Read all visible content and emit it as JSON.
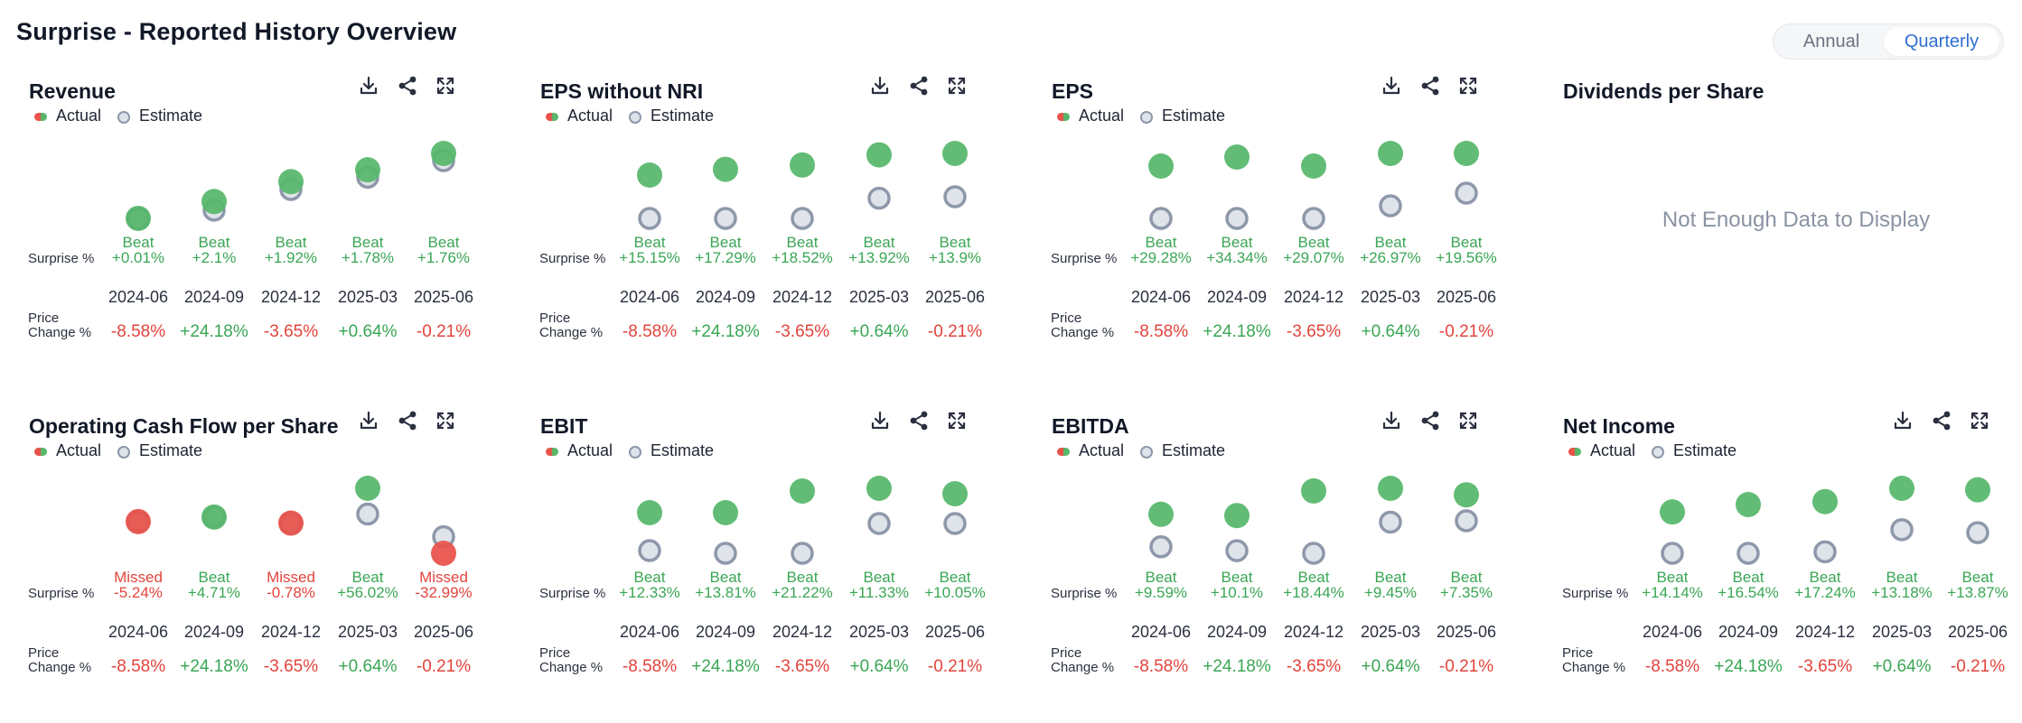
{
  "page": {
    "title": "Surprise - Reported History Overview",
    "toggle": {
      "annual": "Annual",
      "quarterly": "Quarterly",
      "selected": "Quarterly"
    }
  },
  "legend": {
    "actual": "Actual",
    "estimate": "Estimate"
  },
  "row_labels": {
    "surprise": "Surprise %",
    "price_line1": "Price",
    "price_line2": "Change %"
  },
  "icons": {
    "download": "download-icon",
    "share": "share-icon",
    "expand": "expand-icon"
  },
  "colors": {
    "beat": "#56b76a",
    "missed": "#e8524a",
    "estimate_fill": "#dfe3ea",
    "estimate_stroke": "#8e98aa",
    "positive_text": "#3aa655",
    "negative_text": "#e2443c"
  },
  "no_data_text": "Not Enough Data to Display",
  "chart_data": [
    {
      "type": "scatter",
      "title": "Revenue",
      "categories": [
        "2024-06",
        "2024-09",
        "2024-12",
        "2025-03",
        "2025-06"
      ],
      "series": [
        {
          "name": "Actual",
          "values": [
            1.0201,
            1.061,
            1.1092,
            1.1378,
            1.1776
          ]
        },
        {
          "name": "Estimate",
          "values": [
            1.02,
            1.04,
            1.09,
            1.12,
            1.16
          ]
        }
      ],
      "results": [
        "Beat",
        "Beat",
        "Beat",
        "Beat",
        "Beat"
      ],
      "surprise_pct": [
        "+0.01%",
        "+2.1%",
        "+1.92%",
        "+1.78%",
        "+1.76%"
      ],
      "price_change_pct": [
        "-8.58%",
        "+24.18%",
        "-3.65%",
        "+0.64%",
        "-0.21%"
      ]
    },
    {
      "type": "scatter",
      "title": "EPS without NRI",
      "categories": [
        "2024-06",
        "2024-09",
        "2024-12",
        "2025-03",
        "2025-06"
      ],
      "series": [
        {
          "name": "Actual",
          "values": [
            1.15,
            1.17,
            1.185,
            1.22,
            1.225
          ]
        },
        {
          "name": "Estimate",
          "values": [
            1.0,
            1.0,
            1.0,
            1.07,
            1.075
          ]
        }
      ],
      "results": [
        "Beat",
        "Beat",
        "Beat",
        "Beat",
        "Beat"
      ],
      "surprise_pct": [
        "+15.15%",
        "+17.29%",
        "+18.52%",
        "+13.92%",
        "+13.9%"
      ],
      "price_change_pct": [
        "-8.58%",
        "+24.18%",
        "-3.65%",
        "+0.64%",
        "-0.21%"
      ]
    },
    {
      "type": "scatter",
      "title": "EPS",
      "categories": [
        "2024-06",
        "2024-09",
        "2024-12",
        "2025-03",
        "2025-06"
      ],
      "series": [
        {
          "name": "Actual",
          "values": [
            1.29,
            1.34,
            1.29,
            1.36,
            1.36
          ]
        },
        {
          "name": "Estimate",
          "values": [
            1.0,
            1.0,
            1.0,
            1.07,
            1.14
          ]
        }
      ],
      "results": [
        "Beat",
        "Beat",
        "Beat",
        "Beat",
        "Beat"
      ],
      "surprise_pct": [
        "+29.28%",
        "+34.34%",
        "+29.07%",
        "+26.97%",
        "+19.56%"
      ],
      "price_change_pct": [
        "-8.58%",
        "+24.18%",
        "-3.65%",
        "+0.64%",
        "-0.21%"
      ]
    },
    {
      "type": "scatter",
      "title": "Dividends per Share",
      "no_data": true
    },
    {
      "type": "scatter",
      "title": "Operating Cash Flow per Share",
      "categories": [
        "2024-06",
        "2024-09",
        "2024-12",
        "2025-03",
        "2025-06"
      ],
      "series": [
        {
          "name": "Actual",
          "values": [
            0.95,
            0.98,
            0.94,
            1.17,
            0.74
          ]
        },
        {
          "name": "Estimate",
          "values": [
            0.95,
            0.98,
            0.94,
            1.0,
            0.85
          ]
        }
      ],
      "results": [
        "Missed",
        "Beat",
        "Missed",
        "Beat",
        "Missed"
      ],
      "surprise_pct": [
        "-5.24%",
        "+4.71%",
        "-0.78%",
        "+56.02%",
        "-32.99%"
      ],
      "price_change_pct": [
        "-8.58%",
        "+24.18%",
        "-3.65%",
        "+0.64%",
        "-0.21%"
      ]
    },
    {
      "type": "scatter",
      "title": "EBIT",
      "categories": [
        "2024-06",
        "2024-09",
        "2024-12",
        "2025-03",
        "2025-06"
      ],
      "series": [
        {
          "name": "Actual",
          "values": [
            1.12,
            1.12,
            1.2,
            1.21,
            1.19
          ]
        },
        {
          "name": "Estimate",
          "values": [
            0.98,
            0.97,
            0.97,
            1.08,
            1.08
          ]
        }
      ],
      "results": [
        "Beat",
        "Beat",
        "Beat",
        "Beat",
        "Beat"
      ],
      "surprise_pct": [
        "+12.33%",
        "+13.81%",
        "+21.22%",
        "+11.33%",
        "+10.05%"
      ],
      "price_change_pct": [
        "-8.58%",
        "+24.18%",
        "-3.65%",
        "+0.64%",
        "-0.21%"
      ]
    },
    {
      "type": "scatter",
      "title": "EBITDA",
      "categories": [
        "2024-06",
        "2024-09",
        "2024-12",
        "2025-03",
        "2025-06"
      ],
      "series": [
        {
          "name": "Actual",
          "values": [
            1.1,
            1.095,
            1.19,
            1.2,
            1.175
          ]
        },
        {
          "name": "Estimate",
          "values": [
            0.975,
            0.96,
            0.95,
            1.07,
            1.075
          ]
        }
      ],
      "results": [
        "Beat",
        "Beat",
        "Beat",
        "Beat",
        "Beat"
      ],
      "surprise_pct": [
        "+9.59%",
        "+10.1%",
        "+18.44%",
        "+9.45%",
        "+7.35%"
      ],
      "price_change_pct": [
        "-8.58%",
        "+24.18%",
        "-3.65%",
        "+0.64%",
        "-0.21%"
      ]
    },
    {
      "type": "scatter",
      "title": "Net Income",
      "categories": [
        "2024-06",
        "2024-09",
        "2024-12",
        "2025-03",
        "2025-06"
      ],
      "series": [
        {
          "name": "Actual",
          "values": [
            1.14,
            1.165,
            1.175,
            1.22,
            1.215
          ]
        },
        {
          "name": "Estimate",
          "values": [
            1.0,
            1.0,
            1.005,
            1.08,
            1.07
          ]
        }
      ],
      "results": [
        "Beat",
        "Beat",
        "Beat",
        "Beat",
        "Beat"
      ],
      "surprise_pct": [
        "+14.14%",
        "+16.54%",
        "+17.24%",
        "+13.18%",
        "+13.87%"
      ],
      "price_change_pct": [
        "-8.58%",
        "+24.18%",
        "-3.65%",
        "+0.64%",
        "-0.21%"
      ]
    }
  ]
}
